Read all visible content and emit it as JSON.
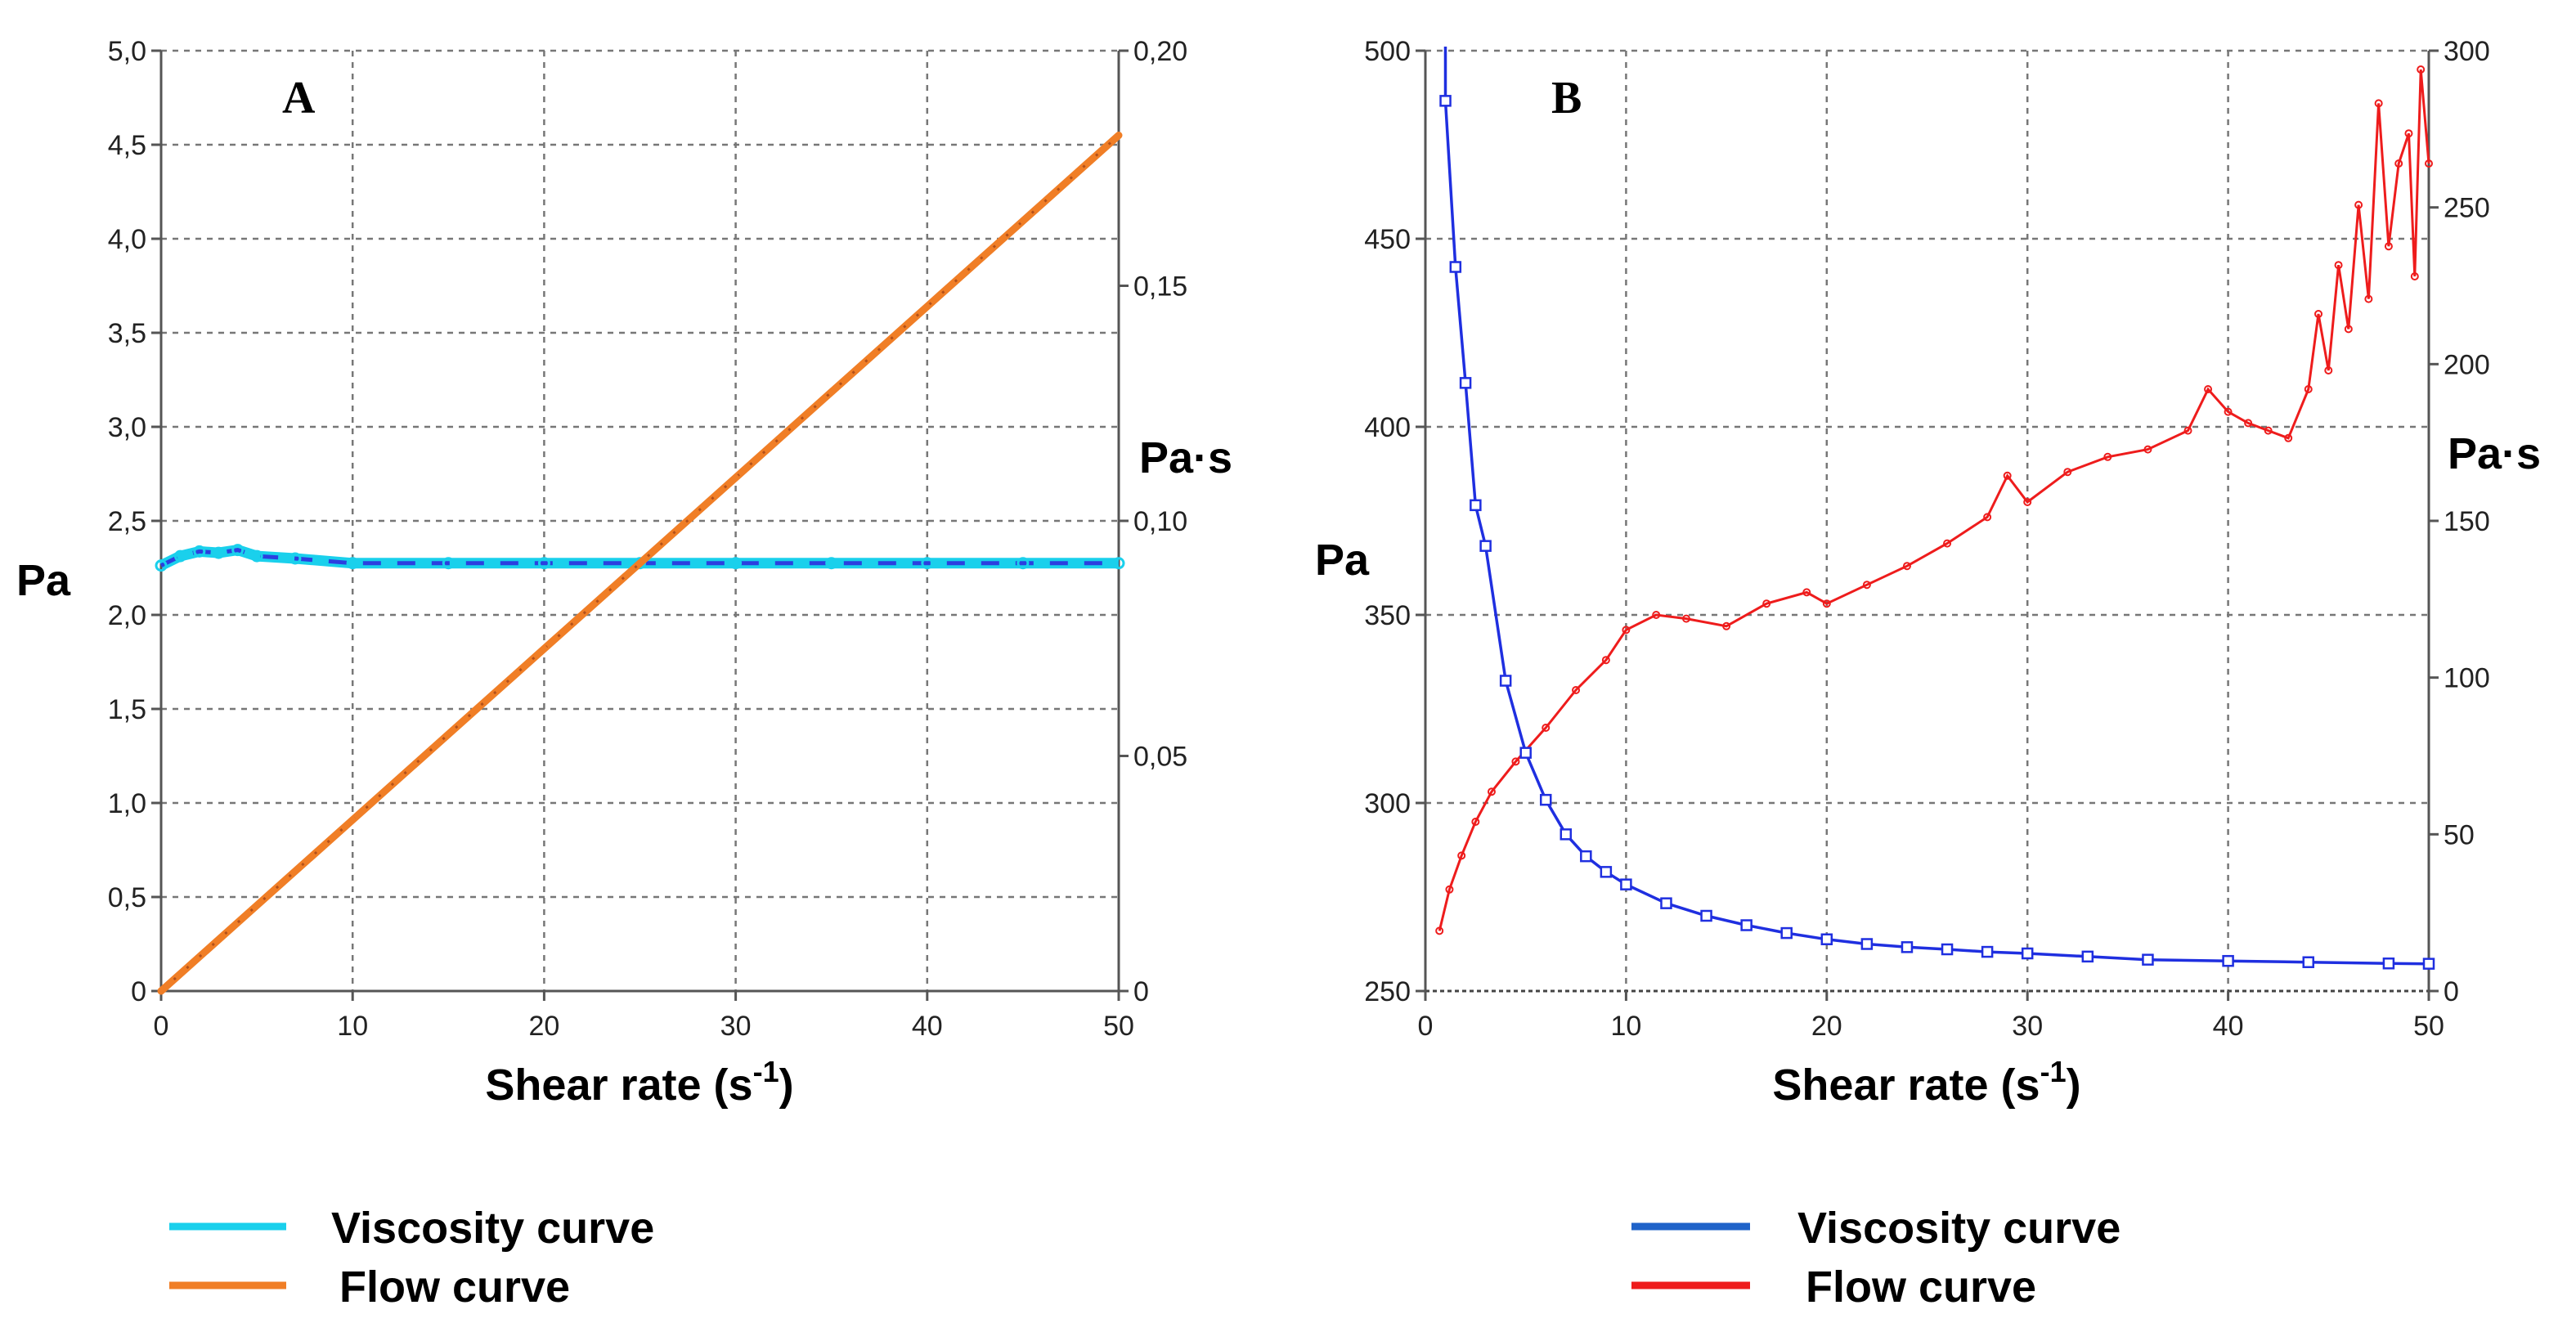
{
  "chart_data": [
    {
      "type": "line",
      "panel_label": "A",
      "xlabel": "Shear rate (s",
      "xlabel_sup": "-1",
      "xlabel_close": ")",
      "ylabel_left": "Pa",
      "ylabel_right": "Pa·s",
      "xlim": [
        0,
        50
      ],
      "ylim_left": [
        0,
        5
      ],
      "ylim_right": [
        0,
        0.2
      ],
      "x_ticks": [
        "0",
        "10",
        "20",
        "30",
        "40",
        "50"
      ],
      "y_left_ticks": [
        "0",
        "0,5",
        "1,0",
        "1,5",
        "2,0",
        "2,5",
        "3,0",
        "3,5",
        "4,0",
        "4,5",
        "5,0"
      ],
      "y_right_ticks": [
        "0",
        "0,05",
        "0,10",
        "0,15",
        "0,20"
      ],
      "grid": true,
      "colors": {
        "viscosity": "#1ad0ec",
        "viscosity_inner": "#2b3fe0",
        "flow": "#f07e26"
      },
      "series": [
        {
          "name": "Flow curve",
          "axis": "left",
          "x": [
            0,
            5,
            10,
            15,
            20,
            25,
            30,
            35,
            40,
            45,
            50
          ],
          "values": [
            0,
            0.455,
            0.91,
            1.365,
            1.82,
            2.275,
            2.73,
            3.185,
            3.64,
            4.095,
            4.55
          ]
        },
        {
          "name": "Viscosity curve",
          "axis": "right",
          "x": [
            0,
            1,
            2,
            3,
            4,
            5,
            7,
            10,
            15,
            20,
            25,
            30,
            35,
            40,
            45,
            50
          ],
          "values": [
            0.0905,
            0.0925,
            0.0935,
            0.0932,
            0.0938,
            0.0925,
            0.092,
            0.091,
            0.091,
            0.091,
            0.091,
            0.091,
            0.091,
            0.091,
            0.091,
            0.091
          ]
        }
      ],
      "legend": [
        {
          "label": "Viscosity curve",
          "color": "#1ad0ec"
        },
        {
          "label": "Flow curve",
          "color": "#f07e26"
        }
      ]
    },
    {
      "type": "line",
      "panel_label": "B",
      "xlabel": "Shear rate (s",
      "xlabel_sup": "-1",
      "xlabel_close": ")",
      "ylabel_left": "Pa",
      "ylabel_right": "Pa·s",
      "xlim": [
        0,
        50
      ],
      "ylim_left": [
        250,
        500
      ],
      "ylim_right": [
        0,
        300
      ],
      "x_ticks": [
        "0",
        "10",
        "20",
        "30",
        "40",
        "50"
      ],
      "y_left_ticks": [
        "250",
        "300",
        "350",
        "400",
        "450",
        "500"
      ],
      "y_right_ticks": [
        "0",
        "50",
        "100",
        "150",
        "200",
        "250",
        "300"
      ],
      "grid": true,
      "colors": {
        "viscosity": "#1f2fe0",
        "flow": "#ee1c1c"
      },
      "series": [
        {
          "name": "Flow curve",
          "axis": "left",
          "x": [
            0.7,
            1.2,
            1.8,
            2.5,
            3.3,
            4.5,
            6.0,
            7.5,
            9.0,
            10.0,
            11.5,
            13.0,
            15.0,
            17.0,
            19.0,
            20.0,
            22.0,
            24.0,
            26.0,
            28.0,
            29.0,
            30.0,
            32.0,
            34.0,
            36.0,
            38.0,
            39.0,
            40.0,
            41.0,
            42.0,
            43.0,
            44.0,
            44.5,
            45.0,
            45.5,
            46.0,
            46.5,
            47.0,
            47.5,
            48.0,
            48.5,
            49.0,
            49.3,
            49.6,
            50.0
          ],
          "values": [
            266,
            277,
            286,
            295,
            303,
            311,
            320,
            330,
            338,
            346,
            350,
            349,
            347,
            353,
            356,
            353,
            358,
            363,
            369,
            376,
            387,
            380,
            388,
            392,
            394,
            399,
            410,
            404,
            401,
            399,
            397,
            410,
            430,
            415,
            443,
            426,
            459,
            434,
            486,
            448,
            470,
            478,
            440,
            495,
            470
          ]
        },
        {
          "name": "Viscosity curve",
          "axis": "right",
          "x": [
            1.0,
            1.5,
            2.0,
            2.5,
            3.0,
            4.0,
            5.0,
            6.0,
            7.0,
            8.0,
            9.0,
            10.0,
            12.0,
            14.0,
            16.0,
            18.0,
            20.0,
            22.0,
            24.0,
            26.0,
            28.0,
            30.0,
            33.0,
            36.0,
            40.0,
            44.0,
            48.0,
            50.0
          ],
          "values": [
            284,
            231,
            194,
            155,
            142,
            99,
            76,
            61,
            50,
            43,
            38,
            34,
            28,
            24,
            21,
            18.5,
            16.5,
            15,
            14,
            13.3,
            12.5,
            12,
            11,
            10,
            9.6,
            9.2,
            8.8,
            8.7
          ]
        }
      ],
      "legend": [
        {
          "label": "Viscosity curve",
          "color": "#1f63c9"
        },
        {
          "label": "Flow curve",
          "color": "#ee1c1c"
        }
      ]
    }
  ]
}
